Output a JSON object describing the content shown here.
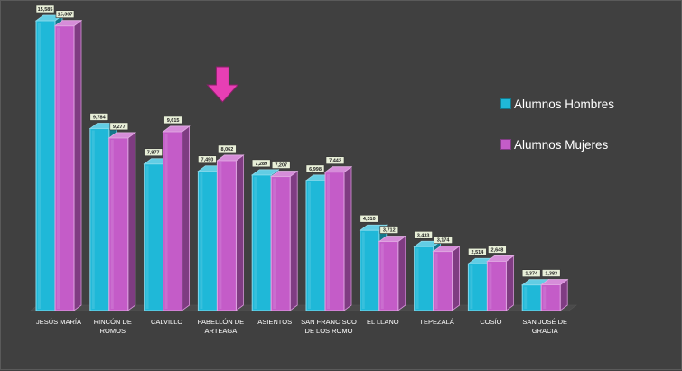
{
  "chart_data": {
    "type": "bar",
    "title": "",
    "xlabel": "",
    "ylabel": "",
    "ylim": [
      0,
      16000
    ],
    "grid": false,
    "legend_position": "right",
    "categories": [
      "JESÚS MARÍA",
      "RINCÓN DE ROMOS",
      "CALVILLO",
      "PABELLÓN DE ARTEAGA",
      "ASIENTOS",
      "SAN FRANCISCO DE LOS ROMO",
      "EL LLANO",
      "TEPEZALÁ",
      "COSÍO",
      "SAN JOSÉ DE GRACIA"
    ],
    "category_lines": [
      [
        "JESÚS MARÍA"
      ],
      [
        "RINCÓN DE",
        "ROMOS"
      ],
      [
        "CALVILLO"
      ],
      [
        "PABELLÓN DE",
        "ARTEAGA"
      ],
      [
        "ASIENTOS"
      ],
      [
        "SAN FRANCISCO",
        "DE LOS ROMO"
      ],
      [
        "EL LLANO"
      ],
      [
        "TEPEZALÁ"
      ],
      [
        "COSÍO"
      ],
      [
        "SAN JOSÉ DE",
        "GRACIA"
      ]
    ],
    "series": [
      {
        "name": "Alumnos Hombres",
        "color": "#1fb8d8",
        "values": [
          15585,
          9784,
          7877,
          7490,
          7289,
          6998,
          4310,
          3433,
          2514,
          1374
        ],
        "labels": [
          "15,585",
          "9,784",
          "7,877",
          "7,490",
          "7,289",
          "6,998",
          "4,310",
          "3,433",
          "2,514",
          "1,374"
        ]
      },
      {
        "name": "Alumnos Mujeres",
        "color": "#c45cc8",
        "values": [
          15307,
          9277,
          9615,
          8062,
          7207,
          7443,
          3712,
          3174,
          2648,
          1383
        ],
        "labels": [
          "15,307",
          "9,277",
          "9,615",
          "8,062",
          "7,207",
          "7,443",
          "3,712",
          "3,174",
          "2,648",
          "1,383"
        ]
      }
    ]
  },
  "annotation": {
    "arrow_color": "#e73fb4",
    "arrow_category": "PABELLÓN DE ARTEAGA"
  },
  "colors": {
    "background": "#404040",
    "label_fill": "#e8efd8"
  }
}
